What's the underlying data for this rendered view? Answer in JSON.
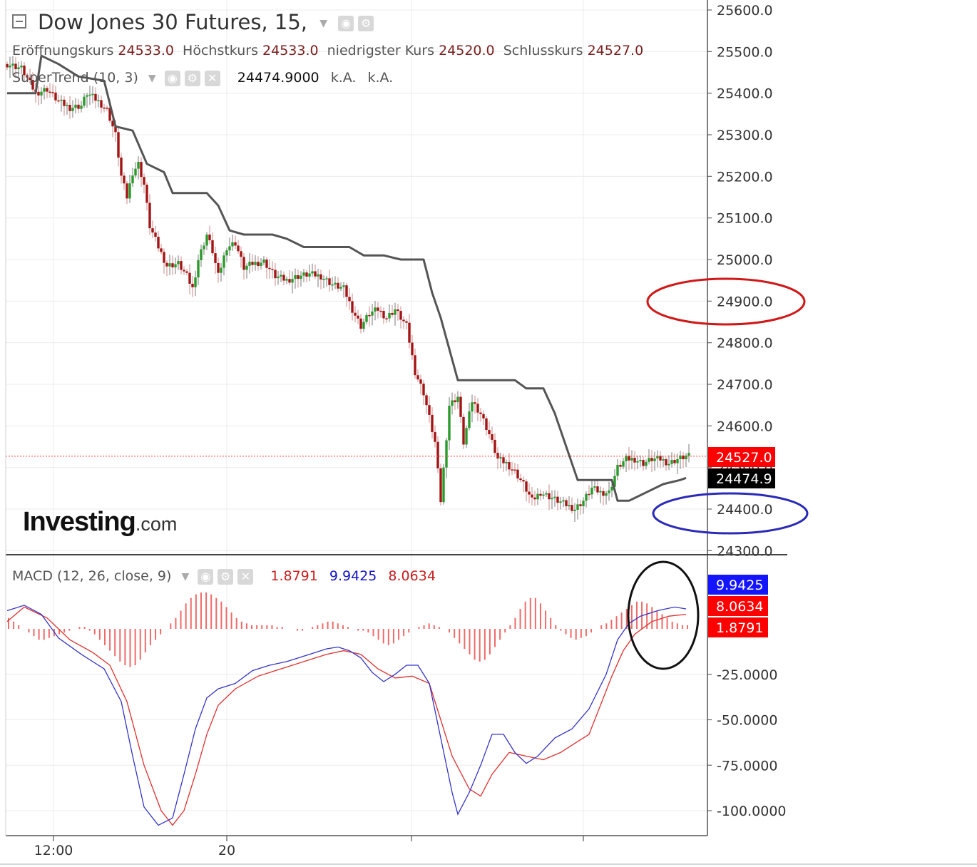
{
  "header": {
    "title": "Dow Jones 30 Futures, 15,",
    "ohlc": [
      {
        "label": "Eröffnungskurs",
        "value": "24533.0"
      },
      {
        "label": "Höchstkurs",
        "value": "24533.0"
      },
      {
        "label": "niedrigster Kurs",
        "value": "24520.0"
      },
      {
        "label": "Schlusskurs",
        "value": "24527.0"
      }
    ],
    "supertrend_label": "SuperTrend (10, 3)",
    "supertrend_value": "24474.9000",
    "supertrend_na1": "k.A.",
    "supertrend_na2": "k.A.",
    "macd_label": "MACD (12, 26, close, 9)",
    "macd_hist": "1.8791",
    "macd_line": "9.9425",
    "macd_signal": "8.0634"
  },
  "logo": {
    "main": "Investing",
    "suffix": ".com"
  },
  "colors": {
    "up": "#2a9a2a",
    "down": "#a31414",
    "supertrend": "#555555",
    "macd": "#3434c8",
    "signal": "#e03030",
    "hist": "#f06a6a",
    "price_label": "#ff0000",
    "st_label": "#000000",
    "macd_label": "#1414ff",
    "annot_red": "#d01818",
    "annot_blue": "#2a2ab8",
    "annot_black": "#111111"
  },
  "chart_data": [
    {
      "type": "candlestick",
      "title": "Dow Jones 30 Futures, 15,",
      "ylim": [
        24280,
        25630
      ],
      "y_ticks": [
        "25600.0",
        "25500.0",
        "25400.0",
        "25300.0",
        "25200.0",
        "25100.0",
        "25000.0",
        "24900.0",
        "24800.0",
        "24700.0",
        "24600.0",
        "24500.0",
        "24400.0",
        "24300.0"
      ],
      "x_ticks": [
        "12:00",
        "20"
      ],
      "last_price": "24527.0",
      "supertrend_last": "24474.9",
      "close_path": [
        [
          0,
          25470
        ],
        [
          5,
          25460
        ],
        [
          10,
          25400
        ],
        [
          14,
          25410
        ],
        [
          18,
          25380
        ],
        [
          22,
          25365
        ],
        [
          26,
          25370
        ],
        [
          28,
          25400
        ],
        [
          32,
          25380
        ],
        [
          35,
          25360
        ],
        [
          38,
          25300
        ],
        [
          40,
          25200
        ],
        [
          42,
          25150
        ],
        [
          44,
          25210
        ],
        [
          46,
          25230
        ],
        [
          48,
          25180
        ],
        [
          50,
          25080
        ],
        [
          53,
          25030
        ],
        [
          56,
          24985
        ],
        [
          60,
          24990
        ],
        [
          63,
          24960
        ],
        [
          65,
          24930
        ],
        [
          67,
          25000
        ],
        [
          70,
          25060
        ],
        [
          72,
          25020
        ],
        [
          74,
          24960
        ],
        [
          77,
          25030
        ],
        [
          80,
          25040
        ],
        [
          83,
          24980
        ],
        [
          86,
          24990
        ],
        [
          90,
          24995
        ],
        [
          94,
          24960
        ],
        [
          98,
          24950
        ],
        [
          102,
          24960
        ],
        [
          106,
          24965
        ],
        [
          110,
          24960
        ],
        [
          114,
          24940
        ],
        [
          118,
          24930
        ],
        [
          121,
          24880
        ],
        [
          124,
          24840
        ],
        [
          127,
          24870
        ],
        [
          130,
          24880
        ],
        [
          133,
          24860
        ],
        [
          136,
          24880
        ],
        [
          140,
          24840
        ],
        [
          143,
          24730
        ],
        [
          146,
          24680
        ],
        [
          148,
          24620
        ],
        [
          150,
          24560
        ],
        [
          152,
          24420
        ],
        [
          155,
          24650
        ],
        [
          158,
          24670
        ],
        [
          160,
          24560
        ],
        [
          163,
          24660
        ],
        [
          166,
          24630
        ],
        [
          169,
          24580
        ],
        [
          172,
          24520
        ],
        [
          175,
          24510
        ],
        [
          178,
          24490
        ],
        [
          181,
          24460
        ],
        [
          184,
          24420
        ],
        [
          187,
          24440
        ],
        [
          190,
          24430
        ],
        [
          193,
          24420
        ],
        [
          196,
          24410
        ],
        [
          199,
          24400
        ],
        [
          202,
          24420
        ],
        [
          205,
          24450
        ],
        [
          208,
          24440
        ],
        [
          211,
          24440
        ],
        [
          214,
          24500
        ],
        [
          217,
          24520
        ],
        [
          220,
          24520
        ],
        [
          223,
          24510
        ],
        [
          226,
          24520
        ],
        [
          229,
          24520
        ],
        [
          232,
          24510
        ],
        [
          235,
          24520
        ],
        [
          238,
          24527
        ]
      ],
      "supertrend_path": [
        [
          0,
          25400
        ],
        [
          5,
          25400
        ],
        [
          10,
          25400
        ],
        [
          12,
          25490
        ],
        [
          18,
          25470
        ],
        [
          25,
          25440
        ],
        [
          34,
          25430
        ],
        [
          38,
          25320
        ],
        [
          44,
          25310
        ],
        [
          49,
          25230
        ],
        [
          55,
          25210
        ],
        [
          58,
          25160
        ],
        [
          70,
          25160
        ],
        [
          74,
          25130
        ],
        [
          78,
          25070
        ],
        [
          83,
          25060
        ],
        [
          93,
          25060
        ],
        [
          98,
          25050
        ],
        [
          104,
          25030
        ],
        [
          120,
          25030
        ],
        [
          125,
          25010
        ],
        [
          132,
          25010
        ],
        [
          138,
          25000
        ],
        [
          146,
          25000
        ],
        [
          149,
          24920
        ],
        [
          152,
          24860
        ],
        [
          158,
          24710
        ],
        [
          169,
          24710
        ],
        [
          178,
          24710
        ],
        [
          182,
          24690
        ],
        [
          188,
          24690
        ],
        [
          192,
          24630
        ],
        [
          196,
          24550
        ],
        [
          200,
          24470
        ],
        [
          206,
          24470
        ],
        [
          212,
          24470
        ],
        [
          214,
          24420
        ],
        [
          218,
          24420
        ],
        [
          224,
          24440
        ],
        [
          230,
          24460
        ],
        [
          236,
          24470
        ],
        [
          238,
          24475
        ]
      ]
    },
    {
      "type": "line",
      "title": "MACD (12, 26, close, 9)",
      "ylim": [
        -115,
        40
      ],
      "y_ticks": [
        "-25.0000",
        "-50.0000",
        "-75.0000",
        "-100.0000"
      ],
      "last_values": {
        "macd": "9.9425",
        "signal": "8.0634",
        "histogram": "1.8791"
      },
      "macd_path": [
        [
          0,
          10
        ],
        [
          6,
          13
        ],
        [
          12,
          8
        ],
        [
          18,
          -5
        ],
        [
          26,
          -14
        ],
        [
          34,
          -22
        ],
        [
          40,
          -40
        ],
        [
          44,
          -70
        ],
        [
          48,
          -98
        ],
        [
          53,
          -108
        ],
        [
          58,
          -104
        ],
        [
          62,
          -80
        ],
        [
          66,
          -55
        ],
        [
          70,
          -38
        ],
        [
          74,
          -33
        ],
        [
          80,
          -30
        ],
        [
          86,
          -23
        ],
        [
          92,
          -20
        ],
        [
          98,
          -18
        ],
        [
          106,
          -14
        ],
        [
          112,
          -11
        ],
        [
          116,
          -10
        ],
        [
          120,
          -12
        ],
        [
          124,
          -16
        ],
        [
          128,
          -24
        ],
        [
          132,
          -29
        ],
        [
          136,
          -25
        ],
        [
          140,
          -20
        ],
        [
          144,
          -20
        ],
        [
          148,
          -30
        ],
        [
          152,
          -60
        ],
        [
          156,
          -90
        ],
        [
          158,
          -102
        ],
        [
          162,
          -90
        ],
        [
          166,
          -75
        ],
        [
          170,
          -58
        ],
        [
          174,
          -58
        ],
        [
          178,
          -68
        ],
        [
          182,
          -74
        ],
        [
          186,
          -70
        ],
        [
          192,
          -60
        ],
        [
          198,
          -55
        ],
        [
          204,
          -44
        ],
        [
          210,
          -25
        ],
        [
          214,
          -6
        ],
        [
          218,
          3
        ],
        [
          222,
          7
        ],
        [
          228,
          10
        ],
        [
          234,
          12
        ],
        [
          238,
          11
        ]
      ],
      "signal_path": [
        [
          0,
          4
        ],
        [
          6,
          12
        ],
        [
          14,
          6
        ],
        [
          22,
          -6
        ],
        [
          30,
          -13
        ],
        [
          36,
          -20
        ],
        [
          42,
          -40
        ],
        [
          48,
          -75
        ],
        [
          54,
          -100
        ],
        [
          58,
          -108
        ],
        [
          62,
          -100
        ],
        [
          66,
          -80
        ],
        [
          70,
          -58
        ],
        [
          74,
          -42
        ],
        [
          80,
          -33
        ],
        [
          88,
          -26
        ],
        [
          96,
          -22
        ],
        [
          104,
          -18
        ],
        [
          112,
          -14
        ],
        [
          118,
          -12
        ],
        [
          124,
          -14
        ],
        [
          130,
          -22
        ],
        [
          136,
          -27
        ],
        [
          142,
          -26
        ],
        [
          148,
          -30
        ],
        [
          152,
          -50
        ],
        [
          156,
          -70
        ],
        [
          162,
          -88
        ],
        [
          166,
          -92
        ],
        [
          170,
          -80
        ],
        [
          176,
          -68
        ],
        [
          182,
          -70
        ],
        [
          188,
          -72
        ],
        [
          194,
          -68
        ],
        [
          200,
          -62
        ],
        [
          204,
          -58
        ],
        [
          208,
          -42
        ],
        [
          212,
          -26
        ],
        [
          216,
          -12
        ],
        [
          220,
          -3
        ],
        [
          226,
          4
        ],
        [
          232,
          7
        ],
        [
          238,
          8
        ]
      ],
      "histogram": [
        6,
        4,
        2,
        0,
        -2,
        -4,
        -6,
        -6,
        -5,
        -4,
        -3,
        -2,
        -1,
        0,
        1,
        1,
        -1,
        -3,
        -6,
        -9,
        -12,
        -15,
        -18,
        -20,
        -21,
        -20,
        -17,
        -13,
        -9,
        -6,
        -3,
        0,
        3,
        6,
        10,
        14,
        17,
        19,
        20,
        20,
        19,
        17,
        15,
        12,
        9,
        6,
        4,
        3,
        2,
        2,
        2,
        2,
        2,
        1,
        1,
        0,
        0,
        -1,
        -1,
        0,
        1,
        2,
        3,
        4,
        4,
        3,
        2,
        1,
        0,
        -1,
        -1,
        -2,
        -4,
        -6,
        -8,
        -9,
        -8,
        -6,
        -4,
        -2,
        0,
        1,
        2,
        3,
        2,
        1,
        0,
        -2,
        -5,
        -8,
        -11,
        -14,
        -17,
        -18,
        -17,
        -14,
        -10,
        -6,
        -2,
        2,
        6,
        11,
        15,
        17,
        17,
        14,
        10,
        6,
        2,
        -1,
        -3,
        -5,
        -6,
        -5,
        -4,
        -2,
        0,
        2,
        3,
        5,
        7,
        9,
        11,
        13,
        15,
        15,
        14,
        12,
        10,
        8,
        6,
        4,
        3,
        2,
        2
      ]
    }
  ],
  "annotations": [
    {
      "shape": "ellipse",
      "color": "red",
      "around": "24900.0"
    },
    {
      "shape": "ellipse",
      "color": "blue",
      "around": "24400.0"
    },
    {
      "shape": "ellipse",
      "color": "black",
      "around": "macd crossover"
    }
  ]
}
